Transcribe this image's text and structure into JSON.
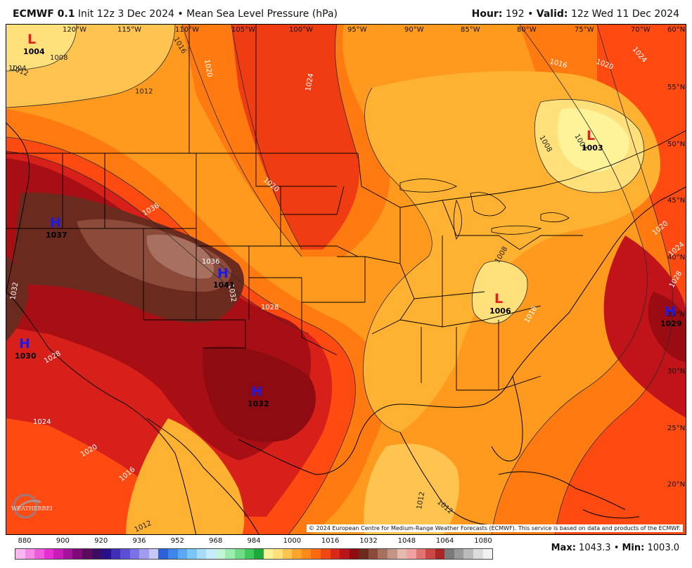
{
  "header": {
    "model": "ECMWF 0.1",
    "init_text": "Init 12z 3 Dec 2024",
    "bullet": "•",
    "product": "Mean Sea Level Pressure (hPa)",
    "hour_label": "Hour:",
    "hour_value": "192",
    "valid_label": "Valid:",
    "valid_value": "12z Wed 11 Dec 2024"
  },
  "longitude_labels": [
    "120°W",
    "115°W",
    "110°W",
    "105°W",
    "100°W",
    "95°W",
    "90°W",
    "85°W",
    "80°W",
    "75°W",
    "70°W"
  ],
  "latitude_labels": [
    "60°N",
    "55°N",
    "50°N",
    "45°N",
    "40°N",
    "35°N",
    "30°N",
    "25°N",
    "20°N"
  ],
  "isobar_labels": [
    "1004",
    "1008",
    "1012",
    "1012",
    "1016",
    "1020",
    "1024",
    "1020",
    "1016",
    "1020",
    "1024",
    "1008",
    "1004",
    "1036",
    "1036",
    "1032",
    "1028",
    "1032",
    "1028",
    "1024",
    "1020",
    "1016",
    "1012",
    "1012",
    "1008",
    "1012",
    "1016",
    "1020",
    "1024",
    "1028"
  ],
  "pressure_systems": [
    {
      "type": "L",
      "value": "1004",
      "color": "#e02020"
    },
    {
      "type": "L",
      "value": "1003",
      "color": "#e02020"
    },
    {
      "type": "H",
      "value": "1037",
      "color": "#1a1aee"
    },
    {
      "type": "H",
      "value": "1041",
      "color": "#1a1aee"
    },
    {
      "type": "H",
      "value": "1030",
      "color": "#1a1aee"
    },
    {
      "type": "H",
      "value": "1032",
      "color": "#1a1aee"
    },
    {
      "type": "L",
      "value": "1006",
      "color": "#e02020"
    },
    {
      "type": "H",
      "value": "1029",
      "color": "#1a1aee"
    }
  ],
  "copyright": "© 2024 European Centre for Medium-Range Weather Forecasts (ECMWF). This service is based on data and products of the ECMWF.",
  "logo_text": "WEATHERBELL",
  "colorbar": {
    "labels": [
      "880",
      "900",
      "920",
      "936",
      "952",
      "968",
      "984",
      "1000",
      "1016",
      "1032",
      "1048",
      "1064",
      "1080"
    ],
    "colors": [
      "#f9b6f0",
      "#f48ae6",
      "#ee5bdd",
      "#e62ed2",
      "#c81bb8",
      "#a3129a",
      "#7e0a78",
      "#5c0a5e",
      "#3c0c63",
      "#2a0f8a",
      "#3f2fb6",
      "#5a50d6",
      "#7c72e8",
      "#a29cf1",
      "#c9c6f8",
      "#2c5fd8",
      "#3c86e9",
      "#5aa9f2",
      "#7cc6f7",
      "#a6dcfa",
      "#c8ecfc",
      "#c4f5d8",
      "#9ceeb0",
      "#6fdd86",
      "#3fc95c",
      "#1fa93d",
      "#fff39a",
      "#ffe07a",
      "#ffc450",
      "#ffa52d",
      "#ff8a1c",
      "#ff6a10",
      "#f04812",
      "#d8281a",
      "#b8141a",
      "#8f0b12",
      "#6a2a1e",
      "#8c4a3a",
      "#a8705e",
      "#c49486",
      "#e2bab0",
      "#f0a2a2",
      "#e07272",
      "#cc4646",
      "#a82626",
      "#7a7a7a",
      "#9a9a9a",
      "#bbbbbb",
      "#dcdcdc",
      "#f2f2f2"
    ]
  },
  "stats": {
    "max_label": "Max:",
    "max_value": "1043.3",
    "sep": "•",
    "min_label": "Min:",
    "min_value": "1003.0"
  }
}
